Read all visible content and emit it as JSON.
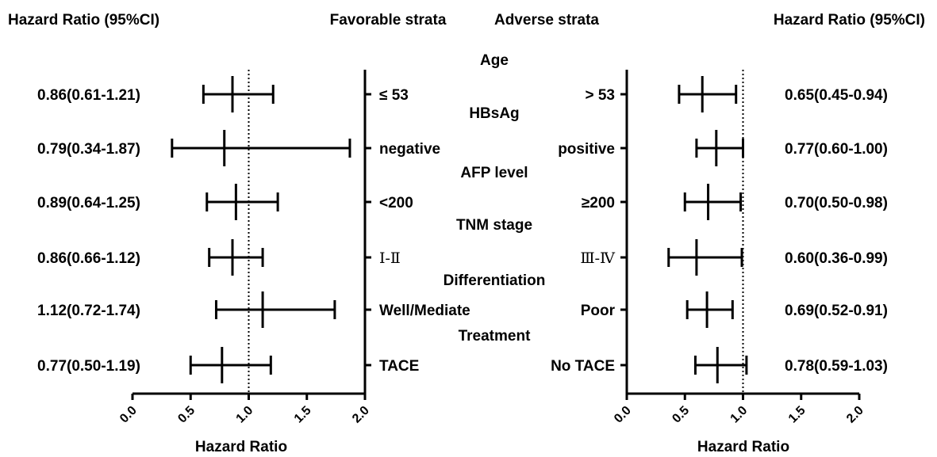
{
  "headers": {
    "left_hr": "Hazard Ratio (95%CI)",
    "favorable": "Favorable strata",
    "adverse": "Adverse strata",
    "right_hr": "Hazard Ratio (95%CI)"
  },
  "chart_data": {
    "type": "forest",
    "xlabel": "Hazard Ratio",
    "xlim": [
      0.0,
      2.0
    ],
    "xticks": [
      "0.0",
      "0.5",
      "1.0",
      "1.5",
      "2.0"
    ],
    "reference_line": 1.0,
    "panels": [
      {
        "side": "favorable",
        "rows": [
          {
            "label": "≤ 53",
            "hr": 0.86,
            "lower": 0.61,
            "upper": 1.21,
            "ci_text": "0.86(0.61-1.21)"
          },
          {
            "label": "negative",
            "hr": 0.79,
            "lower": 0.34,
            "upper": 1.87,
            "ci_text": "0.79(0.34-1.87)"
          },
          {
            "label": "<200",
            "hr": 0.89,
            "lower": 0.64,
            "upper": 1.25,
            "ci_text": "0.89(0.64-1.25)"
          },
          {
            "label": "Ⅰ-Ⅱ",
            "hr": 0.86,
            "lower": 0.66,
            "upper": 1.12,
            "ci_text": "0.86(0.66-1.12)"
          },
          {
            "label": "Well/Mediate",
            "hr": 1.12,
            "lower": 0.72,
            "upper": 1.74,
            "ci_text": "1.12(0.72-1.74)"
          },
          {
            "label": "TACE",
            "hr": 0.77,
            "lower": 0.5,
            "upper": 1.19,
            "ci_text": "0.77(0.50-1.19)"
          }
        ]
      },
      {
        "side": "adverse",
        "rows": [
          {
            "label": "> 53",
            "hr": 0.65,
            "lower": 0.45,
            "upper": 0.94,
            "ci_text": "0.65(0.45-0.94)"
          },
          {
            "label": "positive",
            "hr": 0.77,
            "lower": 0.6,
            "upper": 1.0,
            "ci_text": "0.77(0.60-1.00)"
          },
          {
            "label": "≥200",
            "hr": 0.7,
            "lower": 0.5,
            "upper": 0.98,
            "ci_text": "0.70(0.50-0.98)"
          },
          {
            "label": "Ⅲ-Ⅳ",
            "hr": 0.6,
            "lower": 0.36,
            "upper": 0.99,
            "ci_text": "0.60(0.36-0.99)"
          },
          {
            "label": "Poor",
            "hr": 0.69,
            "lower": 0.52,
            "upper": 0.91,
            "ci_text": "0.69(0.52-0.91)"
          },
          {
            "label": "No TACE",
            "hr": 0.78,
            "lower": 0.59,
            "upper": 1.03,
            "ci_text": "0.78(0.59-1.03)"
          }
        ]
      }
    ],
    "groups": [
      "Age",
      "HBsAg",
      "AFP level",
      "TNM stage",
      "Differentiation",
      "Treatment"
    ]
  }
}
